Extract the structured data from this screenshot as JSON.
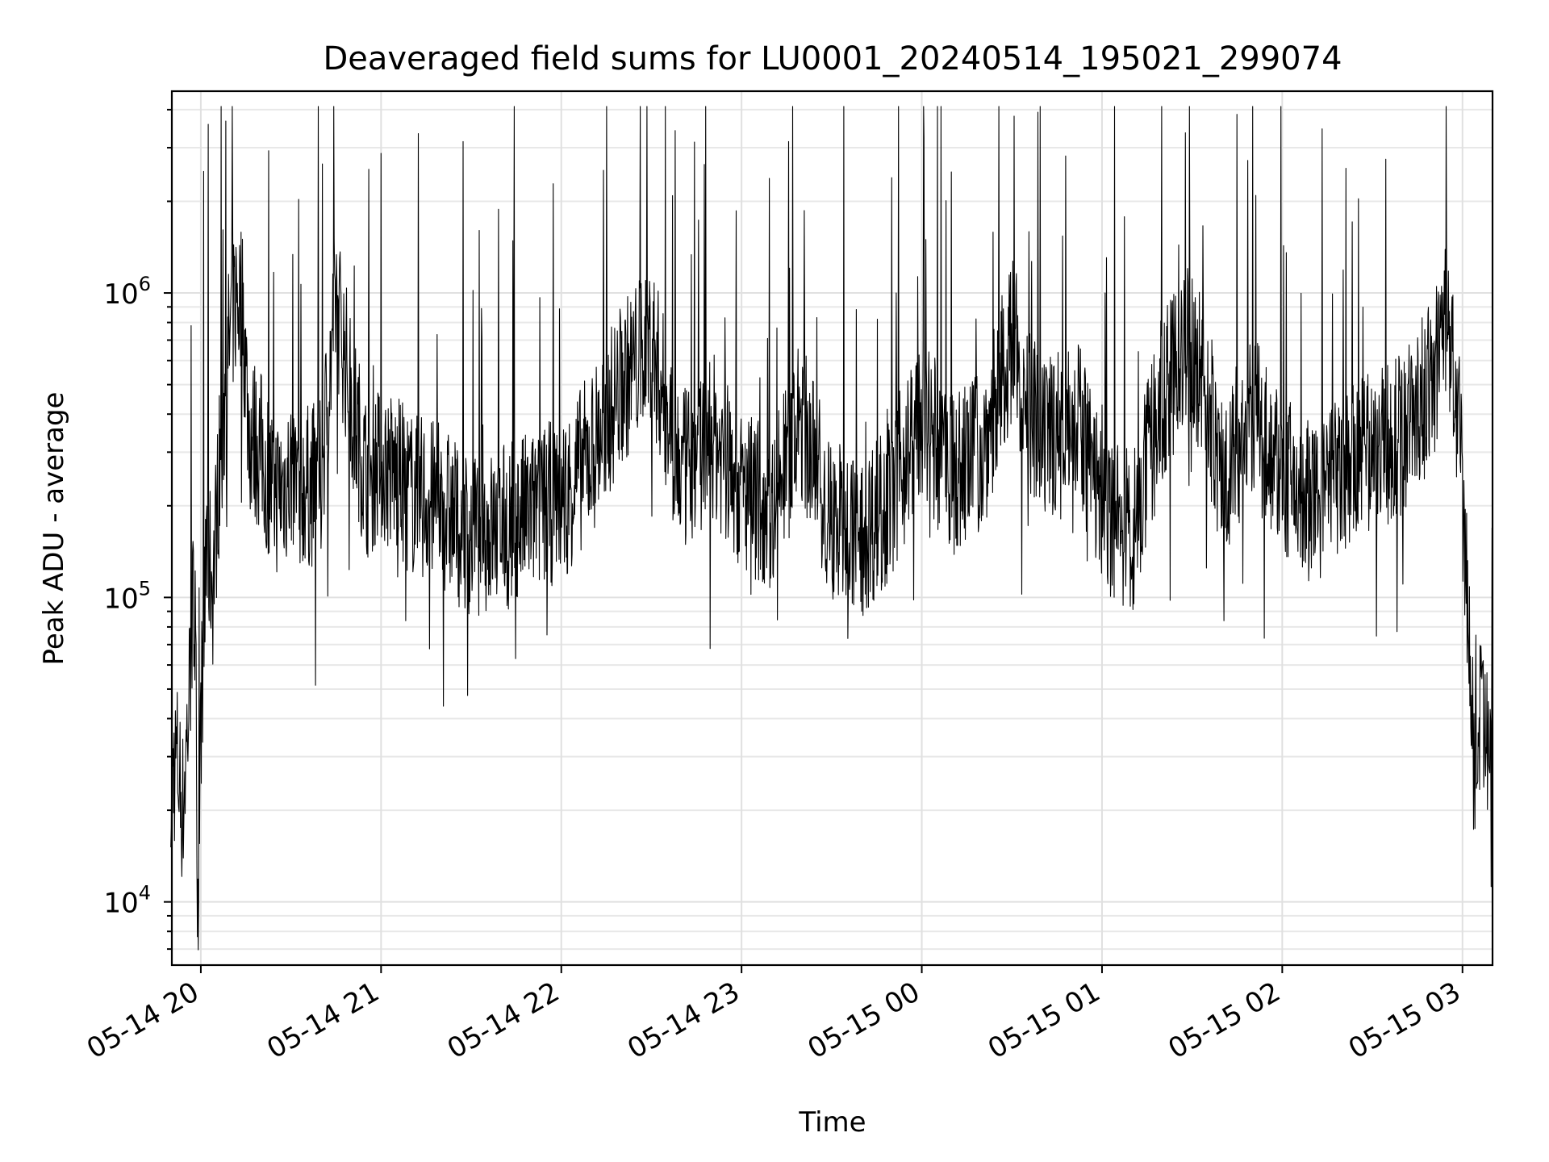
{
  "chart_data": {
    "type": "line",
    "title": "Deaveraged field sums for LU0001_20240514_195021_299074",
    "xlabel": "Time",
    "ylabel": "Peak ADU - average",
    "yscale": "log",
    "xlim": [
      "2024-05-14 19:50:21",
      "2024-05-15 03:10:00"
    ],
    "ylim": [
      6200,
      4600000
    ],
    "grid": true,
    "x_ticks": [
      {
        "label": "05-14 20",
        "value": "2024-05-14 20:00"
      },
      {
        "label": "05-14 21",
        "value": "2024-05-14 21:00"
      },
      {
        "label": "05-14 22",
        "value": "2024-05-14 22:00"
      },
      {
        "label": "05-14 23",
        "value": "2024-05-14 23:00"
      },
      {
        "label": "05-15 00",
        "value": "2024-05-15 00:00"
      },
      {
        "label": "05-15 01",
        "value": "2024-05-15 01:00"
      },
      {
        "label": "05-15 02",
        "value": "2024-05-15 02:00"
      },
      {
        "label": "05-15 03",
        "value": "2024-05-15 03:00"
      }
    ],
    "y_ticks": [
      {
        "base": "10",
        "exp": "4",
        "value": 10000
      },
      {
        "base": "10",
        "exp": "5",
        "value": 100000
      },
      {
        "base": "10",
        "exp": "6",
        "value": 1000000
      }
    ],
    "series": [
      {
        "color": "#000000",
        "x": [
          "2024-05-14 19:50",
          "2024-05-14 19:52",
          "2024-05-14 19:54",
          "2024-05-14 19:56",
          "2024-05-14 19:58",
          "2024-05-14 19:59",
          "2024-05-14 20:00",
          "2024-05-14 20:02",
          "2024-05-14 20:04",
          "2024-05-14 20:06",
          "2024-05-14 20:08",
          "2024-05-14 20:10",
          "2024-05-14 20:12",
          "2024-05-14 20:14",
          "2024-05-14 20:16",
          "2024-05-14 20:20",
          "2024-05-14 20:25",
          "2024-05-14 20:30",
          "2024-05-14 20:35",
          "2024-05-14 20:40",
          "2024-05-14 20:45",
          "2024-05-14 20:50",
          "2024-05-14 20:55",
          "2024-05-14 21:00",
          "2024-05-14 21:10",
          "2024-05-14 21:20",
          "2024-05-14 21:30",
          "2024-05-14 21:40",
          "2024-05-14 21:50",
          "2024-05-14 22:00",
          "2024-05-14 22:10",
          "2024-05-14 22:20",
          "2024-05-14 22:30",
          "2024-05-14 22:40",
          "2024-05-14 22:50",
          "2024-05-14 23:00",
          "2024-05-14 23:10",
          "2024-05-14 23:20",
          "2024-05-14 23:30",
          "2024-05-14 23:40",
          "2024-05-14 23:50",
          "2024-05-15 00:00",
          "2024-05-15 00:10",
          "2024-05-15 00:20",
          "2024-05-15 00:30",
          "2024-05-15 00:40",
          "2024-05-15 00:50",
          "2024-05-15 01:00",
          "2024-05-15 01:10",
          "2024-05-15 01:20",
          "2024-05-15 01:30",
          "2024-05-15 01:40",
          "2024-05-15 01:50",
          "2024-05-15 02:00",
          "2024-05-15 02:10",
          "2024-05-15 02:20",
          "2024-05-15 02:30",
          "2024-05-15 02:40",
          "2024-05-15 02:50",
          "2024-05-15 02:55",
          "2024-05-15 03:00",
          "2024-05-15 03:02",
          "2024-05-15 03:04",
          "2024-05-15 03:06",
          "2024-05-15 03:08",
          "2024-05-15 03:10"
        ],
        "y": [
          25000,
          30000,
          20000,
          45000,
          130000,
          10000,
          40000,
          150000,
          110000,
          250000,
          450000,
          800000,
          1000000,
          900000,
          350000,
          300000,
          220000,
          250000,
          230000,
          240000,
          1000000,
          450000,
          250000,
          280000,
          220000,
          200000,
          160000,
          170000,
          190000,
          210000,
          300000,
          500000,
          700000,
          250000,
          350000,
          220000,
          200000,
          380000,
          180000,
          160000,
          220000,
          400000,
          250000,
          300000,
          700000,
          300000,
          450000,
          200000,
          160000,
          450000,
          700000,
          250000,
          400000,
          250000,
          200000,
          250000,
          300000,
          350000,
          500000,
          900000,
          250000,
          80000,
          25000,
          40000,
          30000,
          35000
        ]
      }
    ]
  }
}
